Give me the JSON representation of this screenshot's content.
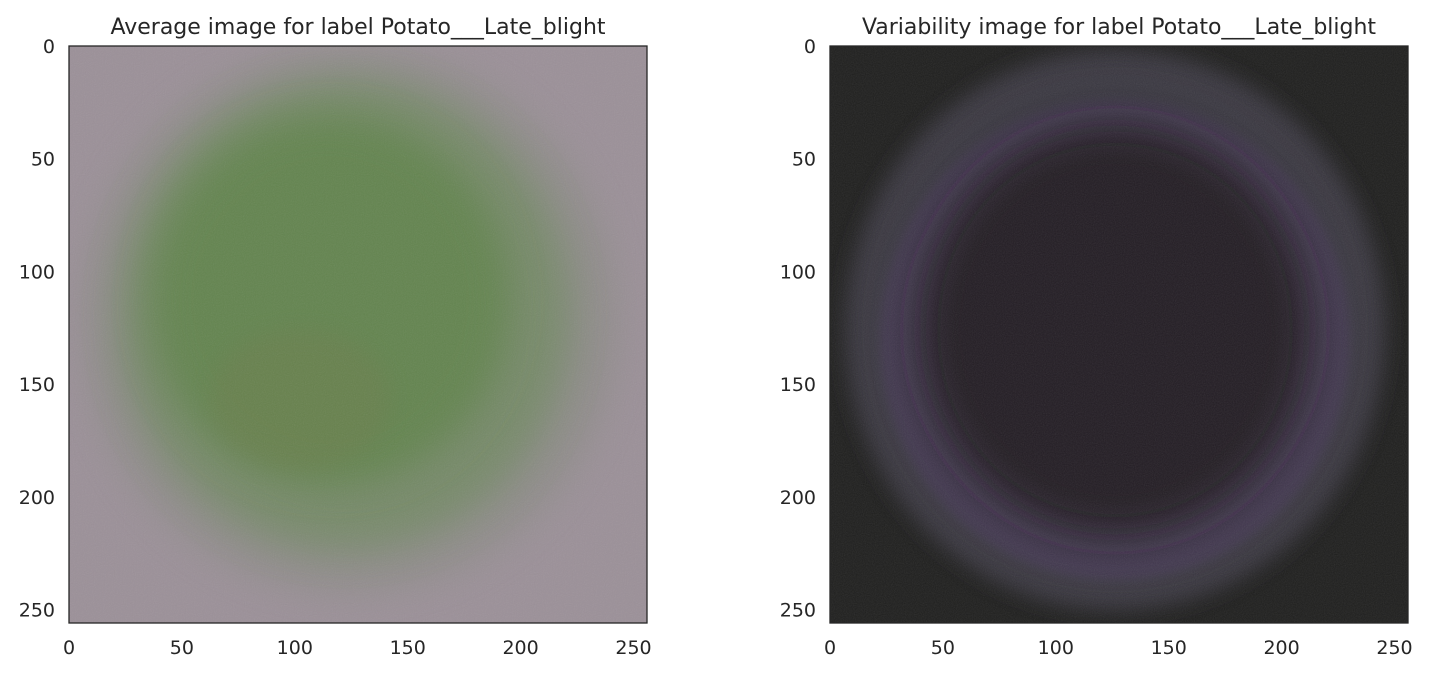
{
  "figure": {
    "panel_count": 2
  },
  "chart_data": [
    {
      "type": "heatmap",
      "title": "Average image for label Potato___Late_blight",
      "xlabel": "",
      "ylabel": "",
      "xlim": [
        0,
        256
      ],
      "ylim": [
        256,
        0
      ],
      "x_ticks": [
        0,
        50,
        100,
        150,
        200,
        250
      ],
      "y_ticks": [
        0,
        50,
        100,
        150,
        200,
        250
      ],
      "grid": false,
      "legend": "none",
      "image_content": "mean RGB image of leaf photos",
      "colors": {
        "background": "#9b9098",
        "halo": "#8a8b84",
        "leaf_outer": "#738a65",
        "leaf_core": "#5e8349",
        "leaf_warm_spot": "#6f7b4c"
      }
    },
    {
      "type": "heatmap",
      "title": "Variability image for label Potato___Late_blight",
      "xlabel": "",
      "ylabel": "",
      "xlim": [
        0,
        256
      ],
      "ylim": [
        256,
        0
      ],
      "x_ticks": [
        0,
        50,
        100,
        150,
        200,
        250
      ],
      "y_ticks": [
        0,
        50,
        100,
        150,
        200,
        250
      ],
      "grid": false,
      "legend": "none",
      "image_content": "per-pixel standard deviation RGB image",
      "colors": {
        "background": "#1f1f1e",
        "ring": "#3e3a44",
        "ring_purple": "#4a3a5a",
        "center": "#201d22"
      }
    }
  ]
}
